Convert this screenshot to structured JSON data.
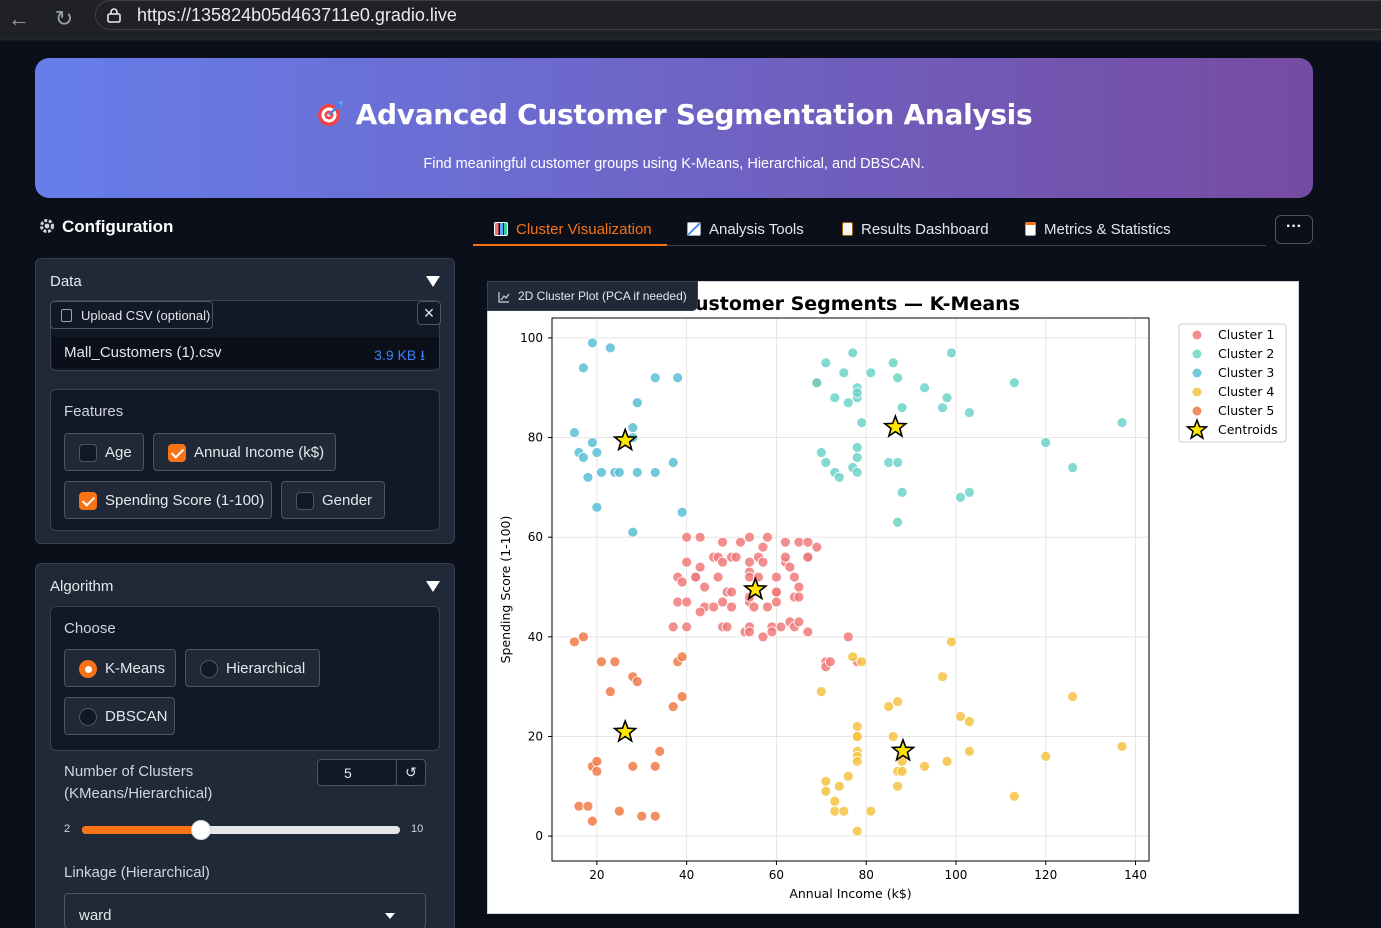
{
  "browser": {
    "url": "https://135824b05d463711e0.gradio.live"
  },
  "header": {
    "title": "Advanced Customer Segmentation Analysis",
    "subtitle": "Find meaningful customer groups using K-Means, Hierarchical, and DBSCAN."
  },
  "config": {
    "title": "Configuration",
    "data_panel": {
      "label": "Data",
      "upload_label": "Upload CSV (optional)",
      "file_name": "Mall_Customers (1).csv",
      "file_size": "3.9 KB ⭳"
    },
    "features": {
      "label": "Features",
      "options": [
        {
          "label": "Age",
          "checked": false
        },
        {
          "label": "Annual Income (k$)",
          "checked": true
        },
        {
          "label": "Spending Score (1-100)",
          "checked": true
        },
        {
          "label": "Gender",
          "checked": false
        }
      ]
    },
    "algorithm_panel": {
      "label": "Algorithm",
      "choose_label": "Choose",
      "options": [
        {
          "label": "K-Means",
          "selected": true
        },
        {
          "label": "Hierarchical",
          "selected": false
        },
        {
          "label": "DBSCAN",
          "selected": false
        }
      ],
      "clusters_label_line1": "Number of Clusters",
      "clusters_label_line2": "(KMeans/Hierarchical)",
      "clusters_value": "5",
      "slider_min": "2",
      "slider_max": "10",
      "slider_fraction": 0.375,
      "linkage_label": "Linkage (Hierarchical)",
      "linkage_value": "ward"
    }
  },
  "tabs": [
    {
      "label": "Cluster Visualization",
      "active": true,
      "icon": "bar-chart-icon"
    },
    {
      "label": "Analysis Tools",
      "active": false,
      "icon": "line-chart-icon"
    },
    {
      "label": "Results Dashboard",
      "active": false,
      "icon": "clipboard-icon"
    },
    {
      "label": "Metrics & Statistics",
      "active": false,
      "icon": "document-icon"
    }
  ],
  "more_label": "···",
  "plot_label": "2D Cluster Plot (PCA if needed)",
  "colors": {
    "accent": "#f97316",
    "banner_start": "#667eea",
    "banner_end": "#764ba2"
  },
  "chart_data": {
    "type": "scatter",
    "title": "Customer Segments — K-Means",
    "xlabel": "Annual Income (k$)",
    "ylabel": "Spending Score (1-100)",
    "xlim": [
      10,
      143
    ],
    "ylim": [
      -5,
      104
    ],
    "xticks": [
      20,
      40,
      60,
      80,
      100,
      120,
      140
    ],
    "yticks": [
      0,
      20,
      40,
      60,
      80,
      100
    ],
    "grid": true,
    "legend_position": "outside-top-right",
    "series": [
      {
        "name": "Cluster 1",
        "color": "#f07a7a",
        "points": [
          [
            40,
            60
          ],
          [
            42,
            52
          ],
          [
            43,
            54
          ],
          [
            43,
            60
          ],
          [
            44,
            50
          ],
          [
            44,
            46
          ],
          [
            46,
            56
          ],
          [
            46,
            46
          ],
          [
            47,
            52
          ],
          [
            47,
            56
          ],
          [
            48,
            42
          ],
          [
            48,
            47
          ],
          [
            48,
            59
          ],
          [
            48,
            55
          ],
          [
            49,
            49
          ],
          [
            49,
            42
          ],
          [
            50,
            56
          ],
          [
            50,
            46
          ],
          [
            50,
            49
          ],
          [
            51,
            56
          ],
          [
            52,
            59
          ],
          [
            53,
            41
          ],
          [
            54,
            42
          ],
          [
            54,
            47
          ],
          [
            54,
            53
          ],
          [
            54,
            48
          ],
          [
            54,
            52
          ],
          [
            54,
            55
          ],
          [
            54,
            60
          ],
          [
            54,
            41
          ],
          [
            55,
            49
          ],
          [
            55,
            46
          ],
          [
            56,
            52
          ],
          [
            56,
            56
          ],
          [
            57,
            58
          ],
          [
            57,
            40
          ],
          [
            57,
            55
          ],
          [
            58,
            46
          ],
          [
            58,
            60
          ],
          [
            59,
            42
          ],
          [
            59,
            41
          ],
          [
            60,
            47
          ],
          [
            60,
            49
          ],
          [
            60,
            49
          ],
          [
            60,
            52
          ],
          [
            61,
            42
          ],
          [
            62,
            59
          ],
          [
            62,
            55
          ],
          [
            62,
            56
          ],
          [
            63,
            54
          ],
          [
            63,
            43
          ],
          [
            64,
            42
          ],
          [
            64,
            52
          ],
          [
            64,
            48
          ],
          [
            65,
            43
          ],
          [
            65,
            59
          ],
          [
            65,
            48
          ],
          [
            65,
            50
          ],
          [
            67,
            41
          ],
          [
            67,
            59
          ],
          [
            67,
            56
          ],
          [
            67,
            56
          ],
          [
            69,
            58
          ],
          [
            69,
            91
          ],
          [
            71,
            35
          ],
          [
            71,
            34
          ],
          [
            72,
            35
          ],
          [
            76,
            40
          ],
          [
            78,
            35
          ],
          [
            37,
            42
          ],
          [
            38,
            47
          ],
          [
            38,
            52
          ],
          [
            39,
            51
          ],
          [
            40,
            55
          ],
          [
            40,
            42
          ],
          [
            40,
            47
          ],
          [
            42,
            52
          ],
          [
            43,
            45
          ]
        ]
      },
      {
        "name": "Cluster 2",
        "color": "#6dd3c8",
        "points": [
          [
            69,
            91
          ],
          [
            70,
            77
          ],
          [
            71,
            95
          ],
          [
            71,
            75
          ],
          [
            73,
            88
          ],
          [
            73,
            73
          ],
          [
            74,
            72
          ],
          [
            75,
            93
          ],
          [
            76,
            87
          ],
          [
            77,
            97
          ],
          [
            77,
            74
          ],
          [
            78,
            90
          ],
          [
            78,
            88
          ],
          [
            78,
            76
          ],
          [
            78,
            89
          ],
          [
            78,
            78
          ],
          [
            78,
            73
          ],
          [
            79,
            83
          ],
          [
            81,
            93
          ],
          [
            85,
            75
          ],
          [
            86,
            95
          ],
          [
            87,
            63
          ],
          [
            87,
            75
          ],
          [
            87,
            92
          ],
          [
            88,
            86
          ],
          [
            88,
            69
          ],
          [
            93,
            90
          ],
          [
            97,
            86
          ],
          [
            98,
            88
          ],
          [
            99,
            97
          ],
          [
            101,
            68
          ],
          [
            103,
            85
          ],
          [
            103,
            69
          ],
          [
            113,
            91
          ],
          [
            120,
            79
          ],
          [
            126,
            74
          ],
          [
            137,
            83
          ]
        ]
      },
      {
        "name": "Cluster 3",
        "color": "#5bbfd6",
        "points": [
          [
            15,
            81
          ],
          [
            16,
            77
          ],
          [
            17,
            76
          ],
          [
            17,
            94
          ],
          [
            18,
            72
          ],
          [
            19,
            99
          ],
          [
            19,
            79
          ],
          [
            20,
            66
          ],
          [
            20,
            77
          ],
          [
            21,
            73
          ],
          [
            23,
            98
          ],
          [
            24,
            73
          ],
          [
            25,
            73
          ],
          [
            28,
            82
          ],
          [
            28,
            61
          ],
          [
            29,
            87
          ],
          [
            29,
            73
          ],
          [
            33,
            92
          ],
          [
            33,
            73
          ],
          [
            37,
            75
          ],
          [
            38,
            92
          ],
          [
            39,
            65
          ],
          [
            28,
            80
          ]
        ]
      },
      {
        "name": "Cluster 4",
        "color": "#f5c342",
        "points": [
          [
            70,
            29
          ],
          [
            71,
            11
          ],
          [
            71,
            9
          ],
          [
            73,
            5
          ],
          [
            73,
            7
          ],
          [
            74,
            10
          ],
          [
            75,
            5
          ],
          [
            76,
            12
          ],
          [
            77,
            36
          ],
          [
            78,
            1
          ],
          [
            78,
            22
          ],
          [
            78,
            17
          ],
          [
            78,
            20
          ],
          [
            78,
            16
          ],
          [
            78,
            15
          ],
          [
            78,
            20
          ],
          [
            79,
            35
          ],
          [
            81,
            5
          ],
          [
            85,
            26
          ],
          [
            86,
            20
          ],
          [
            87,
            27
          ],
          [
            87,
            13
          ],
          [
            87,
            10
          ],
          [
            88,
            13
          ],
          [
            88,
            15
          ],
          [
            93,
            14
          ],
          [
            97,
            32
          ],
          [
            98,
            15
          ],
          [
            99,
            39
          ],
          [
            101,
            24
          ],
          [
            103,
            17
          ],
          [
            103,
            23
          ],
          [
            113,
            8
          ],
          [
            120,
            16
          ],
          [
            126,
            28
          ],
          [
            137,
            18
          ]
        ]
      },
      {
        "name": "Cluster 5",
        "color": "#f07a45",
        "points": [
          [
            15,
            39
          ],
          [
            16,
            6
          ],
          [
            17,
            40
          ],
          [
            18,
            6
          ],
          [
            19,
            3
          ],
          [
            19,
            14
          ],
          [
            20,
            15
          ],
          [
            20,
            13
          ],
          [
            21,
            35
          ],
          [
            23,
            29
          ],
          [
            24,
            35
          ],
          [
            25,
            5
          ],
          [
            28,
            14
          ],
          [
            28,
            32
          ],
          [
            29,
            31
          ],
          [
            30,
            4
          ],
          [
            33,
            4
          ],
          [
            33,
            14
          ],
          [
            34,
            17
          ],
          [
            37,
            26
          ],
          [
            38,
            35
          ],
          [
            39,
            36
          ],
          [
            39,
            28
          ]
        ]
      }
    ],
    "centroids": {
      "name": "Centroids",
      "points": [
        [
          26.3,
          79.4
        ],
        [
          55.3,
          49.5
        ],
        [
          86.5,
          82.1
        ],
        [
          88.2,
          17.1
        ],
        [
          26.3,
          20.9
        ]
      ]
    }
  }
}
